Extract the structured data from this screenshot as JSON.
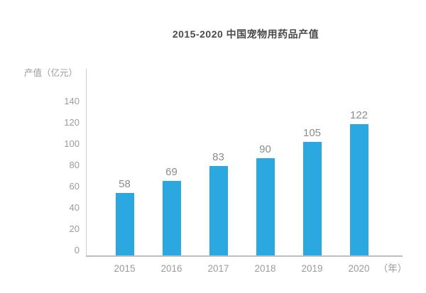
{
  "chart_data": {
    "type": "bar",
    "title": "2015-2020 中国宠物用药品产值",
    "ylabel": "产值（亿元）",
    "xlabel": "（年）",
    "categories": [
      "2015",
      "2016",
      "2017",
      "2018",
      "2019",
      "2020"
    ],
    "values": [
      58,
      69,
      83,
      90,
      105,
      122
    ],
    "yticks": [
      0,
      20,
      40,
      60,
      80,
      100,
      120,
      140
    ],
    "ylim": [
      0,
      140
    ],
    "grid": false,
    "legend": "none",
    "colors": {
      "bar": "#2BA8DF",
      "title_text": "#4A4A4A",
      "axis_text": "#9B9B9B",
      "value_label_text": "#8C8C8C",
      "y_axis_line": "#CBCBCB",
      "x_axis_line": "#BDBDBD",
      "background": "#FFFFFF"
    }
  }
}
